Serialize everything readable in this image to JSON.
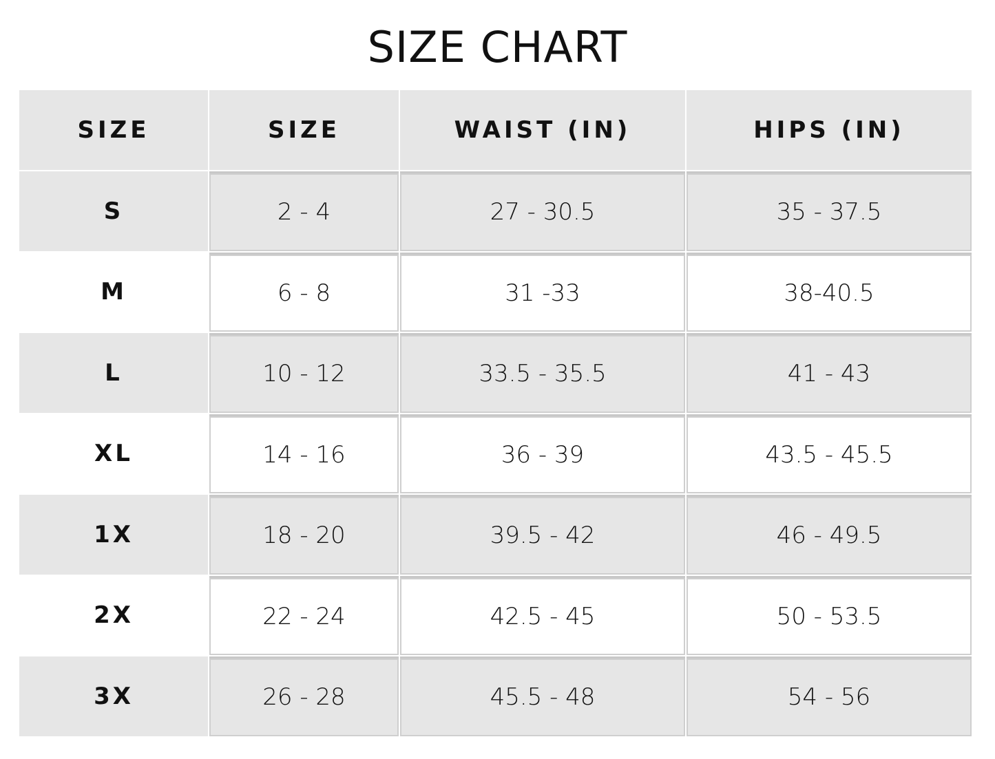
{
  "title": "SIZE CHART",
  "headers": [
    "SIZE",
    "SIZE",
    "WAIST (IN)",
    "HIPS (IN)"
  ],
  "rows": [
    {
      "size": "S",
      "num": "2 - 4",
      "waist": "27 - 30.5",
      "hips": "35 - 37.5"
    },
    {
      "size": "M",
      "num": "6 - 8",
      "waist": "31 -33",
      "hips": "38-40.5"
    },
    {
      "size": "L",
      "num": "10 - 12",
      "waist": "33.5 - 35.5",
      "hips": "41 - 43"
    },
    {
      "size": "XL",
      "num": "14 - 16",
      "waist": "36 - 39",
      "hips": "43.5 - 45.5"
    },
    {
      "size": "1X",
      "num": "18 - 20",
      "waist": "39.5 - 42",
      "hips": "46 - 49.5"
    },
    {
      "size": "2X",
      "num": "22 - 24",
      "waist": "42.5 - 45",
      "hips": "50 - 53.5"
    },
    {
      "size": "3X",
      "num": "26 - 28",
      "waist": "45.5 - 48",
      "hips": "54 - 56"
    }
  ],
  "colors": {
    "shaded_row": "#e6e6e6",
    "border": "#cfcfcf"
  }
}
